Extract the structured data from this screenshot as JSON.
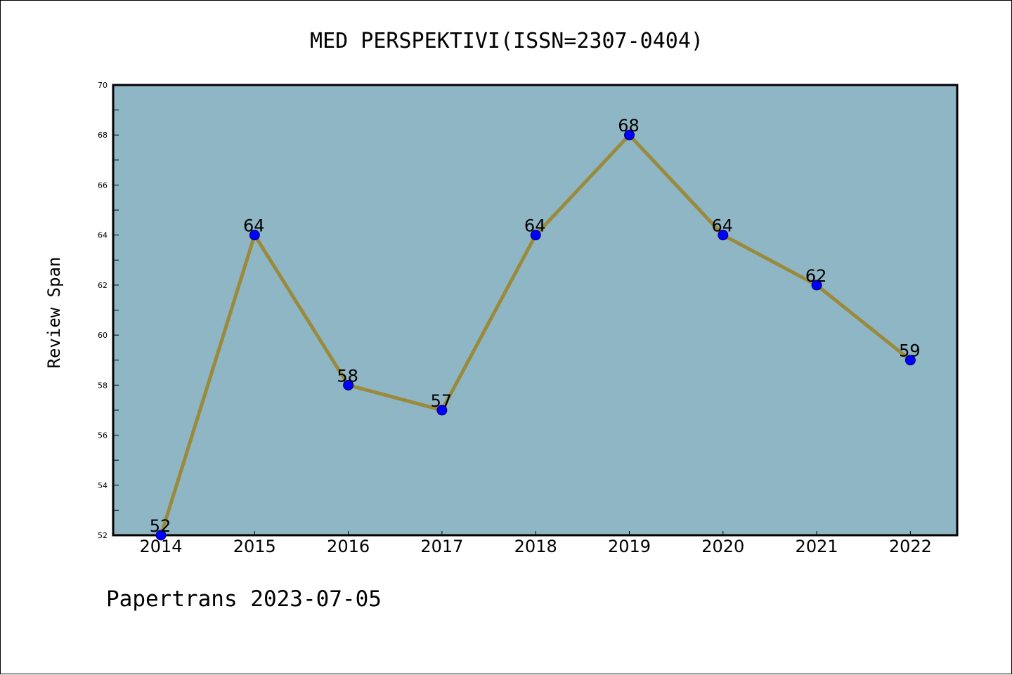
{
  "footer": "Papertrans 2023-07-05",
  "chart_data": {
    "type": "line",
    "title": "MED PERSPEKTIVI(ISSN=2307-0404)",
    "xlabel": "",
    "ylabel": "Review Span",
    "categories": [
      "2014",
      "2015",
      "2016",
      "2017",
      "2018",
      "2019",
      "2020",
      "2021",
      "2022"
    ],
    "values": [
      52,
      64,
      58,
      57,
      64,
      68,
      64,
      62,
      59
    ],
    "data_labels": [
      "52",
      "64",
      "58",
      "57",
      "64",
      "68",
      "64",
      "62",
      "59"
    ],
    "ylim": [
      52,
      70
    ],
    "yticks": [
      "52",
      "54",
      "56",
      "58",
      "60",
      "62",
      "64",
      "66",
      "68",
      "70"
    ],
    "grid": false,
    "colors": {
      "plot_background": "#8fb6c4",
      "line": "#9a8a3c",
      "marker": "#0000ff",
      "marker_edge": "#000066"
    }
  }
}
